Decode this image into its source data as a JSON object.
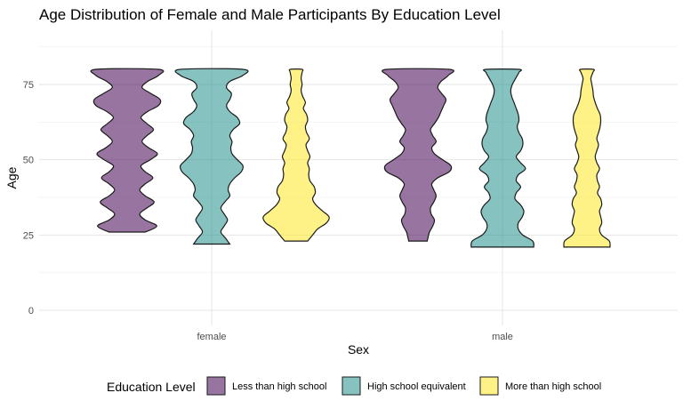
{
  "chart_data": {
    "type": "violin",
    "title": "Age Distribution of Female and Male Participants By Education Level",
    "xlabel": "Sex",
    "ylabel": "Age",
    "categories": [
      "female",
      "male"
    ],
    "ylim": [
      -5,
      93
    ],
    "yticks": [
      0,
      25,
      50,
      75
    ],
    "grid": true,
    "legend": {
      "title": "Education Level",
      "position": "bottom",
      "entries": [
        "Less than high school",
        "High school equivalent",
        "More than high school"
      ]
    },
    "series": [
      {
        "name": "Less than high school",
        "color": "#440154",
        "groups": [
          {
            "category": "female",
            "min_age": 26,
            "max_age": 80,
            "density_profile": [
              [
                26,
                0.55
              ],
              [
                28,
                0.9
              ],
              [
                30,
                0.55
              ],
              [
                32,
                0.38
              ],
              [
                34,
                0.6
              ],
              [
                36,
                0.82
              ],
              [
                38,
                0.55
              ],
              [
                40,
                0.38
              ],
              [
                42,
                0.55
              ],
              [
                44,
                0.78
              ],
              [
                46,
                0.55
              ],
              [
                48,
                0.42
              ],
              [
                50,
                0.7
              ],
              [
                52,
                0.92
              ],
              [
                54,
                0.65
              ],
              [
                56,
                0.45
              ],
              [
                58,
                0.6
              ],
              [
                60,
                0.8
              ],
              [
                62,
                0.6
              ],
              [
                64,
                0.42
              ],
              [
                66,
                0.62
              ],
              [
                68,
                0.95
              ],
              [
                70,
                1.0
              ],
              [
                72,
                0.72
              ],
              [
                74,
                0.45
              ],
              [
                76,
                0.62
              ],
              [
                78,
                0.95
              ],
              [
                80,
                0.95
              ]
            ]
          },
          {
            "category": "male",
            "min_age": 23,
            "max_age": 80,
            "density_profile": [
              [
                23,
                0.28
              ],
              [
                26,
                0.35
              ],
              [
                28,
                0.45
              ],
              [
                30,
                0.5
              ],
              [
                32,
                0.4
              ],
              [
                34,
                0.38
              ],
              [
                36,
                0.48
              ],
              [
                38,
                0.55
              ],
              [
                40,
                0.48
              ],
              [
                42,
                0.42
              ],
              [
                44,
                0.6
              ],
              [
                46,
                0.95
              ],
              [
                48,
                1.0
              ],
              [
                50,
                0.75
              ],
              [
                52,
                0.5
              ],
              [
                54,
                0.42
              ],
              [
                56,
                0.55
              ],
              [
                58,
                0.45
              ],
              [
                60,
                0.38
              ],
              [
                62,
                0.5
              ],
              [
                64,
                0.62
              ],
              [
                66,
                0.7
              ],
              [
                68,
                0.78
              ],
              [
                70,
                0.85
              ],
              [
                72,
                0.72
              ],
              [
                74,
                0.6
              ],
              [
                76,
                0.7
              ],
              [
                78,
                0.92
              ],
              [
                80,
                0.95
              ]
            ]
          }
        ]
      },
      {
        "name": "High school equivalent",
        "color": "#21908C",
        "groups": [
          {
            "category": "female",
            "min_age": 22,
            "max_age": 80,
            "density_profile": [
              [
                22,
                0.55
              ],
              [
                24,
                0.42
              ],
              [
                26,
                0.28
              ],
              [
                28,
                0.38
              ],
              [
                30,
                0.48
              ],
              [
                32,
                0.38
              ],
              [
                34,
                0.28
              ],
              [
                36,
                0.4
              ],
              [
                38,
                0.55
              ],
              [
                40,
                0.5
              ],
              [
                42,
                0.55
              ],
              [
                44,
                0.7
              ],
              [
                46,
                0.9
              ],
              [
                48,
                0.95
              ],
              [
                50,
                0.78
              ],
              [
                52,
                0.62
              ],
              [
                54,
                0.58
              ],
              [
                56,
                0.62
              ],
              [
                58,
                0.55
              ],
              [
                60,
                0.65
              ],
              [
                62,
                0.85
              ],
              [
                64,
                0.78
              ],
              [
                66,
                0.55
              ],
              [
                68,
                0.45
              ],
              [
                70,
                0.55
              ],
              [
                72,
                0.6
              ],
              [
                74,
                0.45
              ],
              [
                76,
                0.55
              ],
              [
                78,
                0.95
              ],
              [
                80,
                0.95
              ]
            ]
          },
          {
            "category": "male",
            "min_age": 21,
            "max_age": 80,
            "density_profile": [
              [
                21,
                0.95
              ],
              [
                23,
                0.92
              ],
              [
                25,
                0.62
              ],
              [
                27,
                0.48
              ],
              [
                29,
                0.48
              ],
              [
                31,
                0.6
              ],
              [
                33,
                0.65
              ],
              [
                35,
                0.55
              ],
              [
                37,
                0.38
              ],
              [
                39,
                0.42
              ],
              [
                41,
                0.55
              ],
              [
                43,
                0.42
              ],
              [
                45,
                0.48
              ],
              [
                47,
                0.7
              ],
              [
                49,
                0.55
              ],
              [
                51,
                0.42
              ],
              [
                53,
                0.55
              ],
              [
                55,
                0.62
              ],
              [
                57,
                0.6
              ],
              [
                59,
                0.5
              ],
              [
                61,
                0.45
              ],
              [
                63,
                0.5
              ],
              [
                65,
                0.48
              ],
              [
                67,
                0.42
              ],
              [
                69,
                0.35
              ],
              [
                71,
                0.28
              ],
              [
                73,
                0.25
              ],
              [
                75,
                0.3
              ],
              [
                77,
                0.4
              ],
              [
                79,
                0.5
              ],
              [
                80,
                0.5
              ]
            ]
          }
        ]
      },
      {
        "name": "More than high school",
        "color": "#FDE725",
        "groups": [
          {
            "category": "female",
            "min_age": 23,
            "max_age": 80,
            "density_profile": [
              [
                23,
                0.35
              ],
              [
                25,
                0.5
              ],
              [
                27,
                0.65
              ],
              [
                29,
                0.92
              ],
              [
                31,
                1.0
              ],
              [
                33,
                0.8
              ],
              [
                35,
                0.6
              ],
              [
                37,
                0.5
              ],
              [
                39,
                0.58
              ],
              [
                41,
                0.55
              ],
              [
                43,
                0.42
              ],
              [
                45,
                0.38
              ],
              [
                47,
                0.4
              ],
              [
                49,
                0.35
              ],
              [
                51,
                0.42
              ],
              [
                53,
                0.35
              ],
              [
                55,
                0.3
              ],
              [
                57,
                0.4
              ],
              [
                59,
                0.32
              ],
              [
                61,
                0.28
              ],
              [
                63,
                0.35
              ],
              [
                65,
                0.32
              ],
              [
                67,
                0.22
              ],
              [
                69,
                0.28
              ],
              [
                71,
                0.2
              ],
              [
                73,
                0.15
              ],
              [
                75,
                0.18
              ],
              [
                77,
                0.15
              ],
              [
                79,
                0.18
              ],
              [
                80,
                0.18
              ]
            ]
          },
          {
            "category": "male",
            "min_age": 21,
            "max_age": 80,
            "density_profile": [
              [
                21,
                0.7
              ],
              [
                23,
                0.68
              ],
              [
                25,
                0.45
              ],
              [
                27,
                0.38
              ],
              [
                29,
                0.45
              ],
              [
                31,
                0.42
              ],
              [
                33,
                0.38
              ],
              [
                35,
                0.45
              ],
              [
                37,
                0.42
              ],
              [
                39,
                0.32
              ],
              [
                41,
                0.38
              ],
              [
                43,
                0.32
              ],
              [
                45,
                0.3
              ],
              [
                47,
                0.38
              ],
              [
                49,
                0.3
              ],
              [
                51,
                0.25
              ],
              [
                53,
                0.3
              ],
              [
                55,
                0.35
              ],
              [
                57,
                0.3
              ],
              [
                59,
                0.35
              ],
              [
                61,
                0.4
              ],
              [
                63,
                0.42
              ],
              [
                65,
                0.4
              ],
              [
                67,
                0.32
              ],
              [
                69,
                0.25
              ],
              [
                71,
                0.2
              ],
              [
                73,
                0.18
              ],
              [
                75,
                0.15
              ],
              [
                77,
                0.12
              ],
              [
                79,
                0.18
              ],
              [
                80,
                0.2
              ]
            ]
          }
        ]
      }
    ]
  }
}
